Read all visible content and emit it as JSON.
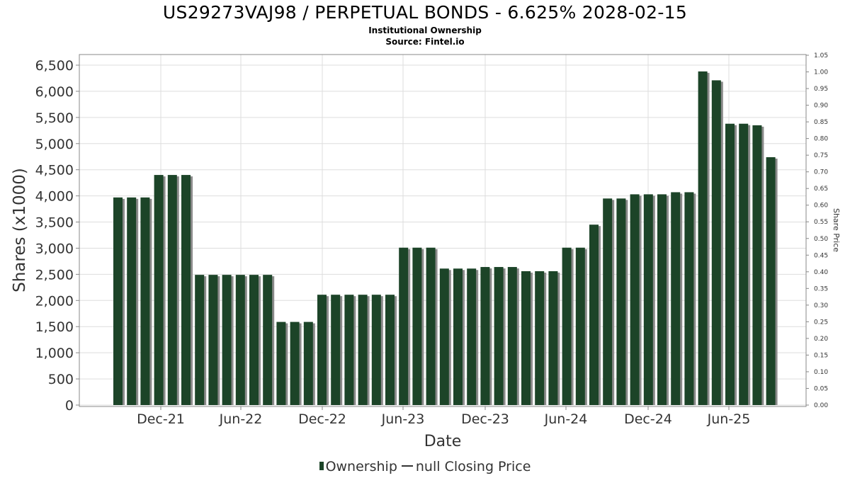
{
  "header": {
    "title": "US29273VAJ98 / PERPETUAL BONDS - 6.625% 2028-02-15",
    "subtitle": "Institutional Ownership",
    "source": "Source: Fintel.io"
  },
  "legend": {
    "ownership_label": "Ownership",
    "price_label": "null Closing Price"
  },
  "colors": {
    "bar": "#1c4428",
    "bar_shadow": "#8a8a8a",
    "grid": "#dddddd"
  },
  "chart_data": {
    "type": "bar",
    "xlabel": "Date",
    "ylabel": "Shares (x1000)",
    "y2label": "Share Price",
    "ylim": [
      0,
      6700
    ],
    "y2lim": [
      0,
      1.05
    ],
    "y_ticks": [
      "0",
      "500",
      "1,000",
      "1,500",
      "2,000",
      "2,500",
      "3,000",
      "3,500",
      "4,000",
      "4,500",
      "5,000",
      "5,500",
      "6,000",
      "6,500"
    ],
    "y2_ticks": [
      "0.00",
      "0.05",
      "0.10",
      "0.15",
      "0.20",
      "0.25",
      "0.30",
      "0.35",
      "0.40",
      "0.45",
      "0.50",
      "0.55",
      "0.60",
      "0.65",
      "0.70",
      "0.75",
      "0.80",
      "0.85",
      "0.90",
      "0.95",
      "1.00",
      "1.05"
    ],
    "x_ticks": [
      "Dec-21",
      "Jun-22",
      "Dec-22",
      "Jun-23",
      "Dec-23",
      "Jun-24",
      "Dec-24",
      "Jun-25"
    ],
    "grid": true,
    "legend_position": "bottom",
    "series": [
      {
        "name": "Ownership",
        "values": [
          3970,
          3970,
          3970,
          4400,
          4400,
          4400,
          2490,
          2490,
          2490,
          2490,
          2490,
          2490,
          1590,
          1590,
          1590,
          2110,
          2110,
          2110,
          2110,
          2110,
          2110,
          3010,
          3010,
          3010,
          2610,
          2610,
          2610,
          2640,
          2640,
          2640,
          2560,
          2560,
          2560,
          3010,
          3010,
          3450,
          3950,
          3950,
          4030,
          4030,
          4030,
          4070,
          4070,
          6380,
          6210,
          5380,
          5380,
          5350,
          4740
        ]
      }
    ]
  }
}
